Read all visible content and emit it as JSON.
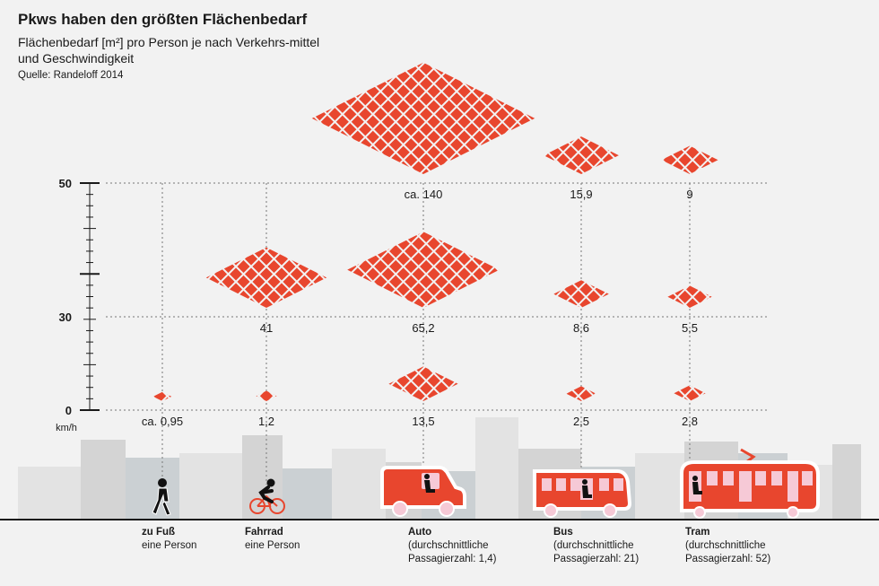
{
  "header": {
    "title": "Pkws haben den größten Flächenbedarf",
    "subtitle": "Flächenbedarf [m²] pro Person je nach Verkehrs-mittel und Geschwindigkeit",
    "source": "Quelle: Randeloff 2014"
  },
  "chart_data": {
    "type": "scatter",
    "title": "Pkws haben den größten Flächenbedarf",
    "subtitle": "Flächenbedarf [m²] pro Person je nach Verkehrs-mittel und Geschwindigkeit",
    "ylabel": "km/h",
    "yticks": [
      "50",
      "30",
      "0"
    ],
    "ytick_values": [
      50,
      30,
      0
    ],
    "ylim": [
      0,
      50
    ],
    "grid": true,
    "categories": [
      "zu Fuß",
      "Fahrrad",
      "Auto",
      "Bus",
      "Tram"
    ],
    "points": [
      {
        "mode": "zu Fuß",
        "speed": 0,
        "area": 0.95,
        "label": "ca. 0,95"
      },
      {
        "mode": "Fahrrad",
        "speed": 0,
        "area": 1.2,
        "label": "1,2"
      },
      {
        "mode": "Fahrrad",
        "speed": 30,
        "area": 41,
        "label": "41"
      },
      {
        "mode": "Auto",
        "speed": 0,
        "area": 13.5,
        "label": "13,5"
      },
      {
        "mode": "Auto",
        "speed": 30,
        "area": 65.2,
        "label": "65,2"
      },
      {
        "mode": "Auto",
        "speed": 50,
        "area": 140,
        "label": "ca. 140"
      },
      {
        "mode": "Bus",
        "speed": 0,
        "area": 2.5,
        "label": "2,5"
      },
      {
        "mode": "Bus",
        "speed": 30,
        "area": 8.6,
        "label": "8,6"
      },
      {
        "mode": "Bus",
        "speed": 50,
        "area": 15.9,
        "label": "15,9"
      },
      {
        "mode": "Tram",
        "speed": 0,
        "area": 2.8,
        "label": "2,8"
      },
      {
        "mode": "Tram",
        "speed": 30,
        "area": 5.5,
        "label": "5,5"
      },
      {
        "mode": "Tram",
        "speed": 50,
        "area": 9,
        "label": "9"
      }
    ],
    "modes": [
      {
        "name": "zu Fuß",
        "sub": [
          "eine Person"
        ],
        "icon": "pedestrian-icon"
      },
      {
        "name": "Fahrrad",
        "sub": [
          "eine Person"
        ],
        "icon": "bicycle-icon"
      },
      {
        "name": "Auto",
        "sub": [
          "(durchschnittliche",
          "Passagierzahl: 1,4)"
        ],
        "icon": "car-icon"
      },
      {
        "name": "Bus",
        "sub": [
          "(durchschnittliche",
          "Passagierzahl: 21)"
        ],
        "icon": "bus-icon"
      },
      {
        "name": "Tram",
        "sub": [
          "(durchschnittliche",
          "Passagierzahl: 52)"
        ],
        "icon": "tram-icon"
      }
    ],
    "colors": {
      "tile": "#e8462e",
      "grid": "#777777",
      "vehicle": "#e8462e",
      "window": "#f6c9d6",
      "skyline": "#d6d6d6",
      "background": "#f2f2f2"
    }
  }
}
